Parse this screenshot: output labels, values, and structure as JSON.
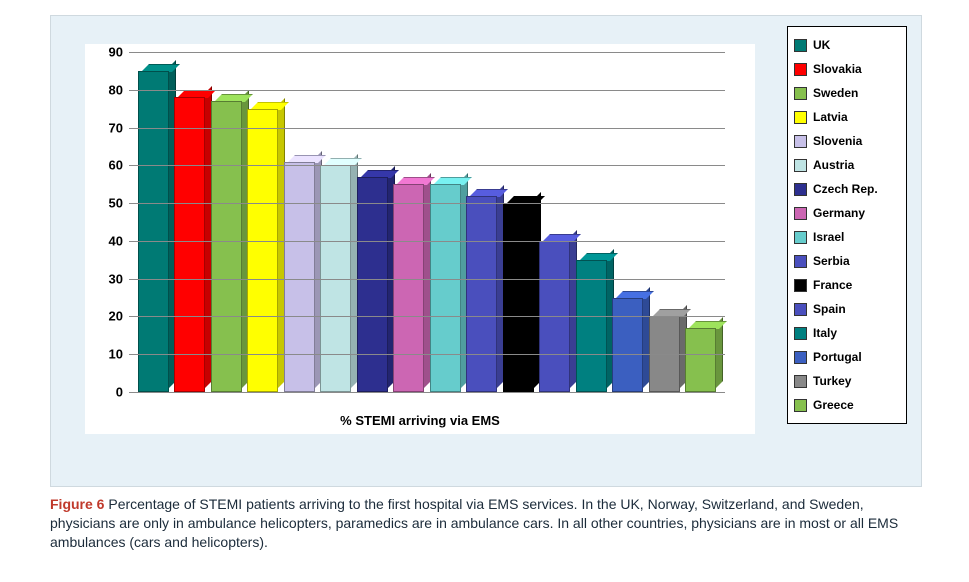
{
  "chart": {
    "type": "bar",
    "x_axis_label": "% STEMI arriving via EMS",
    "ylim": [
      0,
      90
    ],
    "ytick_step": 10,
    "yticks": [
      0,
      10,
      20,
      30,
      40,
      50,
      60,
      70,
      80,
      90
    ],
    "grid_color": "#8a8a8a",
    "plot_background": "#ffffff",
    "panel_background": "#e7f1f7",
    "label_fontsize": 13,
    "tick_fontsize": 13,
    "series": [
      {
        "name": "UK",
        "value": 85,
        "color": "#007a74"
      },
      {
        "name": "Slovakia",
        "value": 78,
        "color": "#ff0000"
      },
      {
        "name": "Sweden",
        "value": 77,
        "color": "#86c04e"
      },
      {
        "name": "Latvia",
        "value": 75,
        "color": "#ffff00"
      },
      {
        "name": "Slovenia",
        "value": 61,
        "color": "#c7c0e8"
      },
      {
        "name": "Austria",
        "value": 60,
        "color": "#bfe4e4"
      },
      {
        "name": "Czech Rep.",
        "value": 57,
        "color": "#2d2f8f"
      },
      {
        "name": "Germany",
        "value": 55,
        "color": "#cc66b3"
      },
      {
        "name": "Israel",
        "value": 55,
        "color": "#66cccc"
      },
      {
        "name": "Serbia",
        "value": 52,
        "color": "#4a4fbd"
      },
      {
        "name": "France",
        "value": 50,
        "color": "#000000"
      },
      {
        "name": "Spain",
        "value": 40,
        "color": "#4a4fbd"
      },
      {
        "name": "Italy",
        "value": 35,
        "color": "#008080"
      },
      {
        "name": "Portugal",
        "value": 25,
        "color": "#3b5fc0"
      },
      {
        "name": "Turkey",
        "value": 20,
        "color": "#888888"
      },
      {
        "name": "Greece",
        "value": 17,
        "color": "#86c04e"
      }
    ]
  },
  "caption": {
    "label": "Figure 6",
    "text": "  Percentage of STEMI patients arriving to the first hospital via EMS services. In the UK, Norway, Switzerland, and Sweden, physicians are only in ambulance helicopters, paramedics are in ambulance cars. In all other countries, physicians are in most or all EMS ambulances (cars and helicopters)."
  }
}
